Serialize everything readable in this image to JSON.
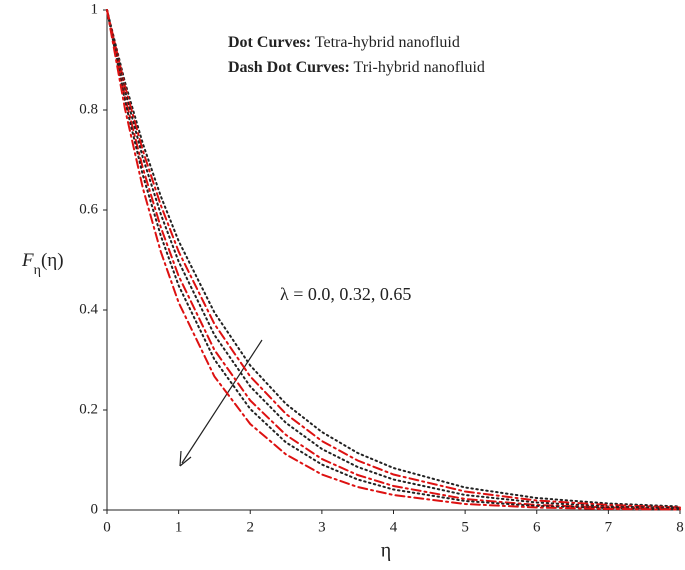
{
  "chart_data": {
    "type": "line",
    "x_label": "η",
    "y_label": {
      "main": "F",
      "sub": "η",
      "arg": "(η)"
    },
    "annotations": [
      {
        "bold": "Dot Curves:",
        "text": "Tetra-hybrid nanofluid"
      },
      {
        "bold": "Dash Dot Curves:",
        "text": "Tri-hybrid nanofluid"
      }
    ],
    "arrow_label": "λ = 0.0, 0.32, 0.65",
    "x": [
      0,
      0.25,
      0.5,
      0.75,
      1,
      1.5,
      2,
      2.5,
      3,
      3.5,
      4,
      5,
      6,
      7,
      8
    ],
    "series": [
      {
        "color": "#222222",
        "style": "dot",
        "values": [
          1,
          0.856,
          0.733,
          0.628,
          0.538,
          0.395,
          0.289,
          0.212,
          0.156,
          0.114,
          0.084,
          0.045,
          0.024,
          0.013,
          0.007
        ]
      },
      {
        "color": "#dd1111",
        "style": "dashdot",
        "values": [
          1,
          0.848,
          0.719,
          0.61,
          0.517,
          0.372,
          0.267,
          0.192,
          0.138,
          0.099,
          0.071,
          0.037,
          0.019,
          0.01,
          0.005
        ]
      },
      {
        "color": "#222222",
        "style": "dot",
        "values": [
          1,
          0.839,
          0.705,
          0.592,
          0.497,
          0.35,
          0.247,
          0.174,
          0.122,
          0.086,
          0.061,
          0.03,
          0.015,
          0.007,
          0.004
        ]
      },
      {
        "color": "#dd1111",
        "style": "dashdot",
        "values": [
          1,
          0.827,
          0.684,
          0.566,
          0.468,
          0.32,
          0.219,
          0.15,
          0.102,
          0.07,
          0.048,
          0.022,
          0.01,
          0.005,
          0.002
        ]
      },
      {
        "color": "#222222",
        "style": "dot",
        "values": [
          1,
          0.819,
          0.67,
          0.549,
          0.449,
          0.301,
          0.202,
          0.135,
          0.091,
          0.061,
          0.041,
          0.018,
          0.008,
          0.004,
          0.002
        ]
      },
      {
        "color": "#dd1111",
        "style": "dashdot",
        "values": [
          1,
          0.803,
          0.644,
          0.517,
          0.415,
          0.267,
          0.172,
          0.111,
          0.071,
          0.046,
          0.03,
          0.012,
          0.005,
          0.002,
          0.001
        ]
      }
    ],
    "xlim": [
      0,
      8
    ],
    "ylim": [
      0,
      1
    ],
    "xticks": [
      0,
      1,
      2,
      3,
      4,
      5,
      6,
      7,
      8
    ],
    "yticks": [
      0,
      0.2,
      0.4,
      0.6,
      0.8,
      1
    ]
  }
}
